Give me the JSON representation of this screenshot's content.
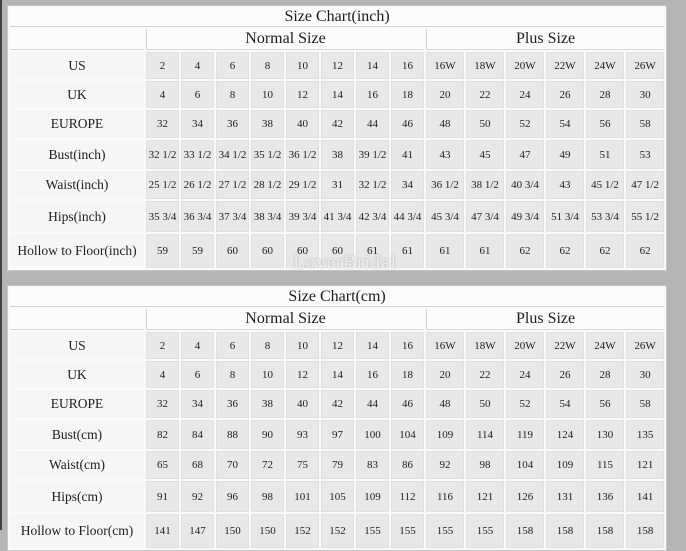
{
  "watermark": "LoverBridal",
  "colors": {
    "page_bg": "#b5b5b5",
    "header_bg": "#fcfcfc",
    "label_cell_bg": "#f6f6f6",
    "data_cell_bg": "#e8e8e8",
    "text": "#1c1c1c"
  },
  "tables": [
    {
      "title": "Size Chart(inch)",
      "group_headers": [
        "Normal Size",
        "Plus Size"
      ],
      "rows": [
        {
          "label": "US",
          "normal": [
            "2",
            "4",
            "6",
            "8",
            "10",
            "12",
            "14",
            "16"
          ],
          "plus": [
            "16W",
            "18W",
            "20W",
            "22W",
            "24W",
            "26W"
          ]
        },
        {
          "label": "UK",
          "normal": [
            "4",
            "6",
            "8",
            "10",
            "12",
            "14",
            "16",
            "18"
          ],
          "plus": [
            "20",
            "22",
            "24",
            "26",
            "28",
            "30"
          ]
        },
        {
          "label": "EUROPE",
          "normal": [
            "32",
            "34",
            "36",
            "38",
            "40",
            "42",
            "44",
            "46"
          ],
          "plus": [
            "48",
            "50",
            "52",
            "54",
            "56",
            "58"
          ]
        },
        {
          "label": "Bust(inch)",
          "normal": [
            "32 1/2",
            "33 1/2",
            "34 1/2",
            "35 1/2",
            "36 1/2",
            "38",
            "39 1/2",
            "41"
          ],
          "plus": [
            "43",
            "45",
            "47",
            "49",
            "51",
            "53"
          ]
        },
        {
          "label": "Waist(inch)",
          "normal": [
            "25 1/2",
            "26 1/2",
            "27 1/2",
            "28 1/2",
            "29 1/2",
            "31",
            "32 1/2",
            "34"
          ],
          "plus": [
            "36 1/2",
            "38 1/2",
            "40 3/4",
            "43",
            "45 1/2",
            "47 1/2"
          ]
        },
        {
          "label": "Hips(inch)",
          "normal": [
            "35 3/4",
            "36 3/4",
            "37 3/4",
            "38 3/4",
            "39 3/4",
            "41 3/4",
            "42 3/4",
            "44 3/4"
          ],
          "plus": [
            "45 3/4",
            "47 3/4",
            "49 3/4",
            "51 3/4",
            "53 3/4",
            "55 1/2"
          ]
        },
        {
          "label": "Hollow to Floor(inch)",
          "normal": [
            "59",
            "59",
            "60",
            "60",
            "60",
            "60",
            "61",
            "61"
          ],
          "plus": [
            "61",
            "61",
            "62",
            "62",
            "62",
            "62"
          ]
        }
      ]
    },
    {
      "title": "Size Chart(cm)",
      "group_headers": [
        "Normal Size",
        "Plus Size"
      ],
      "rows": [
        {
          "label": "US",
          "normal": [
            "2",
            "4",
            "6",
            "8",
            "10",
            "12",
            "14",
            "16"
          ],
          "plus": [
            "16W",
            "18W",
            "20W",
            "22W",
            "24W",
            "26W"
          ]
        },
        {
          "label": "UK",
          "normal": [
            "4",
            "6",
            "8",
            "10",
            "12",
            "14",
            "16",
            "18"
          ],
          "plus": [
            "20",
            "22",
            "24",
            "26",
            "28",
            "30"
          ]
        },
        {
          "label": "EUROPE",
          "normal": [
            "32",
            "34",
            "36",
            "38",
            "40",
            "42",
            "44",
            "46"
          ],
          "plus": [
            "48",
            "50",
            "52",
            "54",
            "56",
            "58"
          ]
        },
        {
          "label": "Bust(cm)",
          "normal": [
            "82",
            "84",
            "88",
            "90",
            "93",
            "97",
            "100",
            "104"
          ],
          "plus": [
            "109",
            "114",
            "119",
            "124",
            "130",
            "135"
          ]
        },
        {
          "label": "Waist(cm)",
          "normal": [
            "65",
            "68",
            "70",
            "72",
            "75",
            "79",
            "83",
            "86"
          ],
          "plus": [
            "92",
            "98",
            "104",
            "109",
            "115",
            "121"
          ]
        },
        {
          "label": "Hips(cm)",
          "normal": [
            "91",
            "92",
            "96",
            "98",
            "101",
            "105",
            "109",
            "112"
          ],
          "plus": [
            "116",
            "121",
            "126",
            "131",
            "136",
            "141"
          ]
        },
        {
          "label": "Hollow to Floor(cm)",
          "normal": [
            "141",
            "147",
            "150",
            "150",
            "152",
            "152",
            "155",
            "155"
          ],
          "plus": [
            "155",
            "155",
            "158",
            "158",
            "158",
            "158"
          ]
        }
      ]
    }
  ]
}
